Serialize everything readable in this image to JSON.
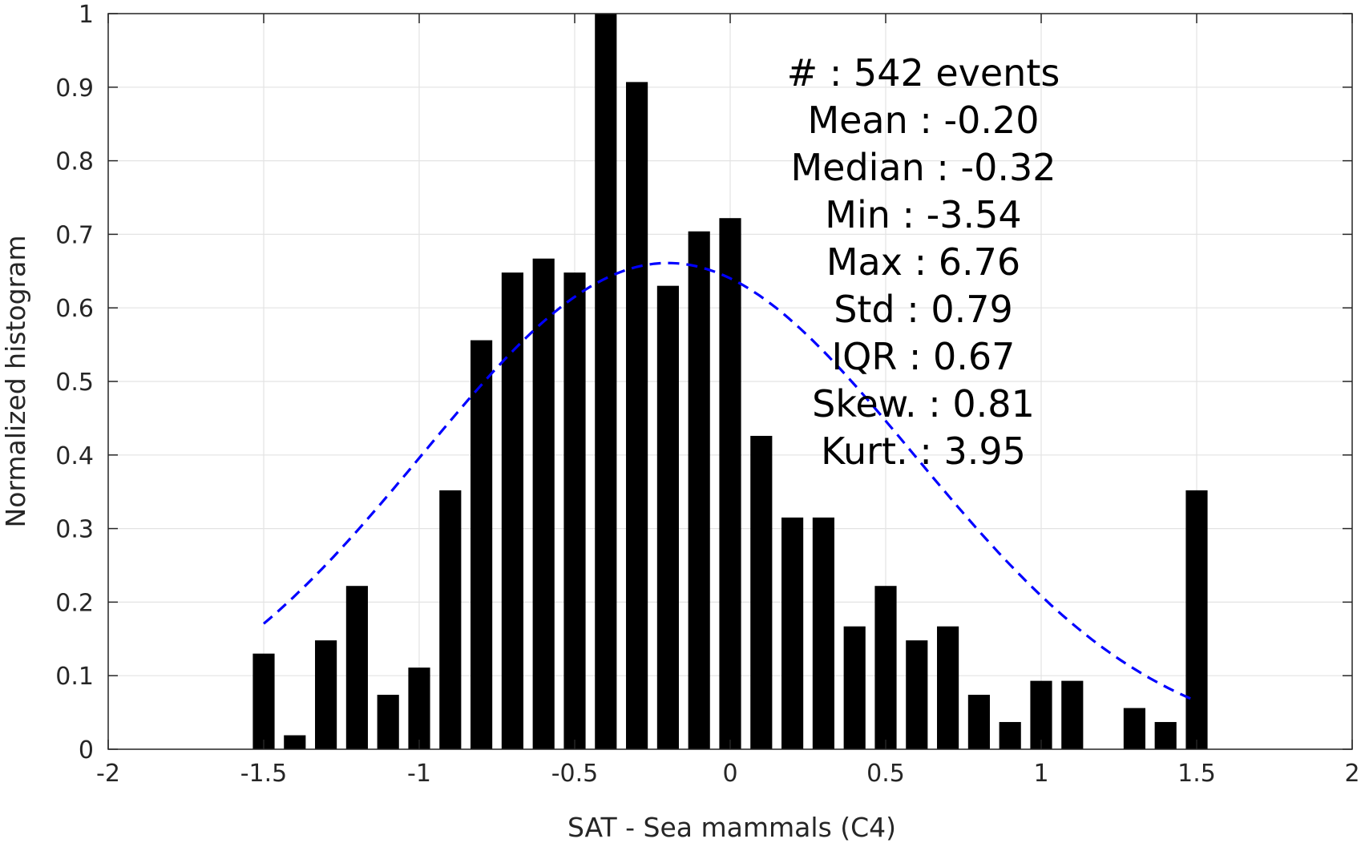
{
  "chart_data": {
    "type": "bar",
    "xlabel": "SAT - Sea mammals (C4)",
    "ylabel": "Normalized histogram",
    "xlim": [
      -2,
      2
    ],
    "ylim": [
      0,
      1
    ],
    "xticks": [
      "-2",
      "-1.5",
      "-1",
      "-0.5",
      "0",
      "0.5",
      "1",
      "1.5",
      "2"
    ],
    "yticks": [
      "0",
      "0.1",
      "0.2",
      "0.3",
      "0.4",
      "0.5",
      "0.6",
      "0.7",
      "0.8",
      "0.9",
      "1"
    ],
    "grid": true,
    "bars": {
      "centers": [
        -1.5,
        -1.4,
        -1.3,
        -1.2,
        -1.1,
        -1.0,
        -0.9,
        -0.8,
        -0.7,
        -0.6,
        -0.5,
        -0.4,
        -0.3,
        -0.2,
        -0.1,
        0.0,
        0.1,
        0.2,
        0.3,
        0.4,
        0.5,
        0.6,
        0.7,
        0.8,
        0.9,
        1.0,
        1.1,
        1.2,
        1.3,
        1.4,
        1.5
      ],
      "values": [
        0.13,
        0.019,
        0.148,
        0.222,
        0.074,
        0.111,
        0.352,
        0.556,
        0.648,
        0.667,
        0.648,
        1.0,
        0.907,
        0.63,
        0.704,
        0.722,
        0.426,
        0.315,
        0.315,
        0.167,
        0.222,
        0.148,
        0.167,
        0.074,
        0.037,
        0.093,
        0.093,
        0.0,
        0.056,
        0.037,
        0.352
      ],
      "width": 0.07,
      "color": "#000000"
    },
    "fit": {
      "type": "gaussian",
      "mean": -0.2,
      "std": 0.79,
      "peak": 0.661,
      "x_range": [
        -1.5,
        1.5
      ],
      "color": "#0000ff",
      "style": "dashed"
    },
    "annotations": [
      {
        "label": "#  ",
        "value": ": 542 events"
      },
      {
        "label": "Mean ",
        "value": ": -0.20"
      },
      {
        "label": "Median ",
        "value": ": -0.32"
      },
      {
        "label": "Min ",
        "value": ": -3.54"
      },
      {
        "label": "Max ",
        "value": ": 6.76"
      },
      {
        "label": "Std ",
        "value": ": 0.79"
      },
      {
        "label": "IQR ",
        "value": ": 0.67"
      },
      {
        "label": "Skew. ",
        "value": ": 0.81"
      },
      {
        "label": "Kurt. ",
        "value": ": 3.95"
      }
    ]
  }
}
